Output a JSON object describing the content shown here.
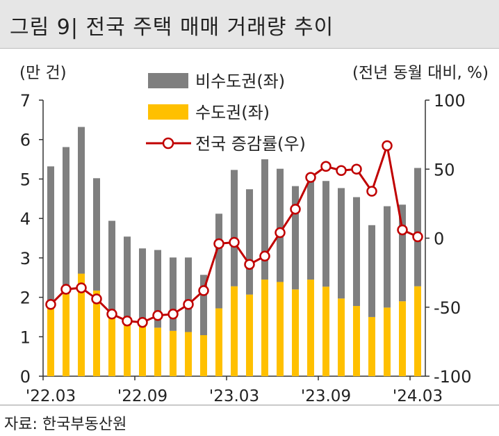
{
  "title": "그림 9| 전국 주택 매매 거래량 추이",
  "source": "자료: 한국부동산원",
  "chart_data": {
    "type": "bar",
    "y_left_label": "(만 건)",
    "y_right_label": "(전년 동월 대비, %)",
    "y_left_range": [
      0,
      7
    ],
    "y_right_range": [
      -100,
      100
    ],
    "y_left_ticks": [
      "0",
      "1",
      "2",
      "3",
      "4",
      "5",
      "6",
      "7"
    ],
    "y_right_ticks": [
      "-100",
      "-50",
      "0",
      "50",
      "100"
    ],
    "x_tick_labels": [
      "'22.03",
      "'22.09",
      "'23.03",
      "'23.09",
      "'24.03"
    ],
    "x_tick_indices": [
      0,
      6,
      12,
      18,
      24
    ],
    "months": [
      "2022-03",
      "2022-04",
      "2022-05",
      "2022-06",
      "2022-07",
      "2022-08",
      "2022-09",
      "2022-10",
      "2022-11",
      "2022-12",
      "2023-01",
      "2023-02",
      "2023-03",
      "2023-04",
      "2023-05",
      "2023-06",
      "2023-07",
      "2023-08",
      "2023-09",
      "2023-10",
      "2023-11",
      "2023-12",
      "2024-01",
      "2024-02",
      "2024-03"
    ],
    "series": [
      {
        "name": "비수도권(좌)",
        "type": "bar",
        "color": "#7f7f7f",
        "values": [
          3.52,
          3.73,
          3.72,
          2.85,
          2.36,
          2.21,
          1.86,
          1.97,
          1.86,
          1.89,
          1.53,
          2.4,
          2.95,
          2.67,
          3.05,
          2.87,
          2.62,
          2.5,
          2.68,
          2.8,
          2.76,
          2.33,
          2.57,
          2.45,
          3.0
        ]
      },
      {
        "name": "수도권(좌)",
        "type": "bar",
        "color": "#ffc000",
        "values": [
          1.8,
          2.08,
          2.6,
          2.17,
          1.58,
          1.33,
          1.38,
          1.23,
          1.15,
          1.12,
          1.04,
          1.72,
          2.28,
          2.07,
          2.45,
          2.39,
          2.2,
          2.45,
          2.27,
          1.97,
          1.78,
          1.5,
          1.74,
          1.9,
          2.28
        ]
      },
      {
        "name": "전국 증감률(우)",
        "type": "line",
        "color": "#c00000",
        "values": [
          -48,
          -37,
          -36,
          -44,
          -55,
          -60,
          -61,
          -56,
          -55,
          -48,
          -38,
          -4,
          -3,
          -19,
          -13,
          4,
          21,
          44,
          52,
          49,
          50,
          34,
          67,
          6,
          1
        ]
      }
    ]
  }
}
